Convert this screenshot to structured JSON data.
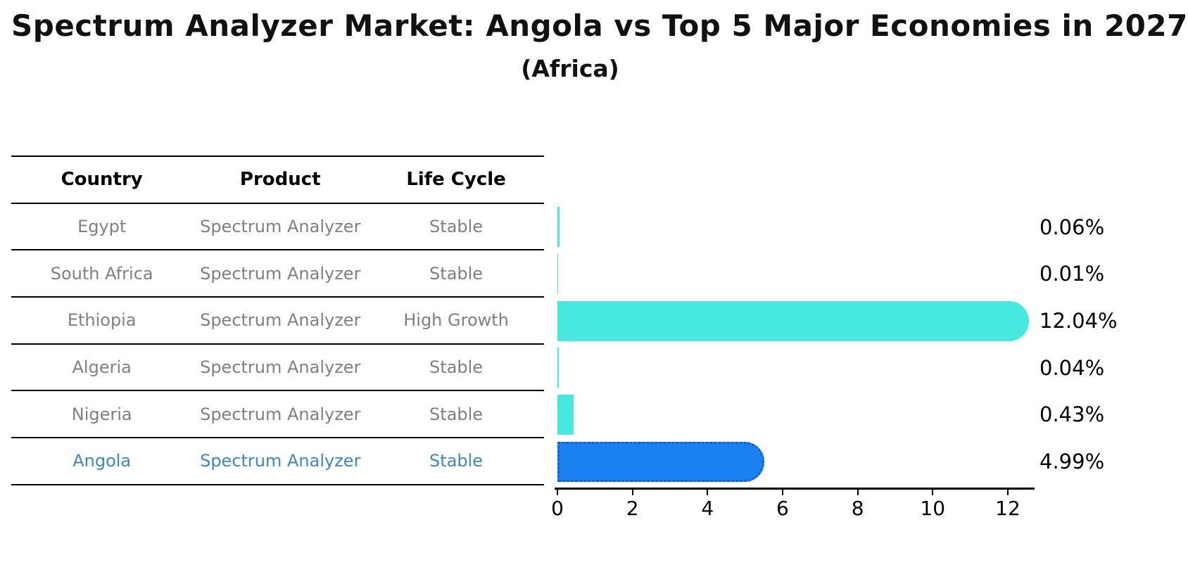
{
  "header": {
    "title": "Spectrum Analyzer Market: Angola vs Top 5 Major Economies in 2027",
    "subtitle": "(Africa)"
  },
  "table": {
    "headers": [
      "Country",
      "Product",
      "Life Cycle"
    ],
    "rows": [
      {
        "country": "Egypt",
        "product": "Spectrum Analyzer",
        "life_cycle": "Stable"
      },
      {
        "country": "South Africa",
        "product": "Spectrum Analyzer",
        "life_cycle": "Stable"
      },
      {
        "country": "Ethiopia",
        "product": "Spectrum Analyzer",
        "life_cycle": "High Growth"
      },
      {
        "country": "Algeria",
        "product": "Spectrum Analyzer",
        "life_cycle": "Stable"
      },
      {
        "country": "Nigeria",
        "product": "Spectrum Analyzer",
        "life_cycle": "Stable"
      },
      {
        "country": "Angola",
        "product": "Spectrum Analyzer",
        "life_cycle": "Stable"
      }
    ],
    "highlight_index": 5,
    "text_color": "#808080",
    "highlight_text_color": "#3b87c9"
  },
  "chart_data": {
    "type": "bar",
    "orientation": "horizontal",
    "title": "Spectrum Analyzer Market: Angola vs Top 5 Major Economies in 2027",
    "subtitle": "(Africa)",
    "xlabel": "",
    "ylabel": "",
    "categories": [
      "Egypt",
      "South Africa",
      "Ethiopia",
      "Algeria",
      "Nigeria",
      "Angola"
    ],
    "values": [
      0.06,
      0.01,
      12.04,
      0.04,
      0.43,
      4.99
    ],
    "value_labels": [
      "0.06%",
      "0.01%",
      "12.04%",
      "0.04%",
      "0.43%",
      "4.99%"
    ],
    "xlim": [
      0,
      12.7
    ],
    "x_ticks": [
      0,
      2,
      4,
      6,
      8,
      10,
      12
    ],
    "grid": false,
    "legend": false,
    "bar_color": "#47e8e0",
    "highlight_bar_color": "#1b80f0",
    "highlight_index": 5
  }
}
